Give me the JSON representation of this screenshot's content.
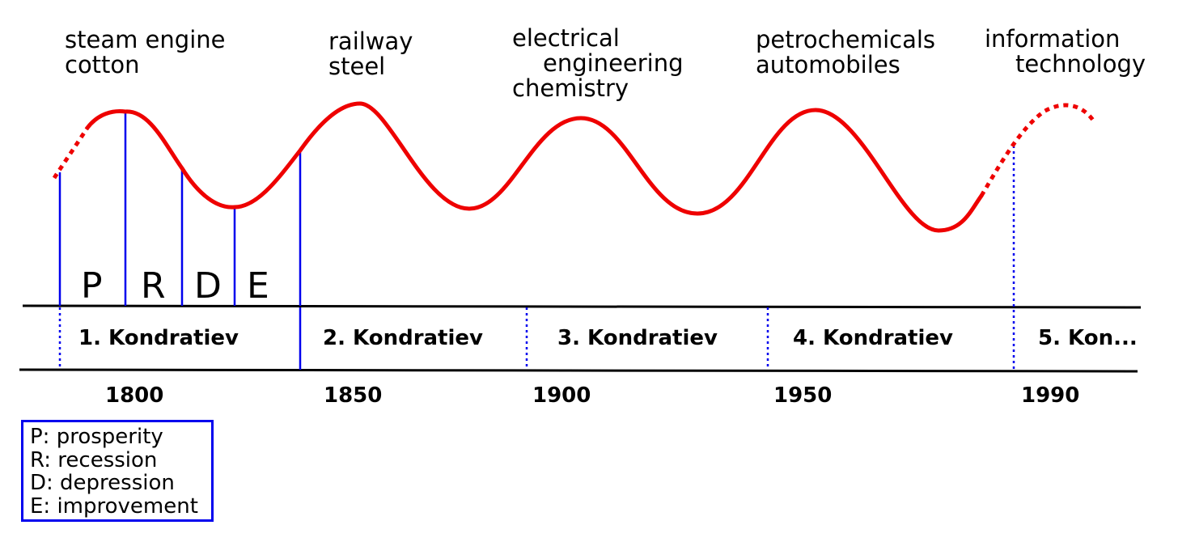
{
  "innovations": [
    {
      "lines": [
        "steam engine",
        "cotton"
      ]
    },
    {
      "lines": [
        "railway",
        "steel"
      ]
    },
    {
      "lines": [
        "electrical",
        "engineering",
        "chemistry"
      ]
    },
    {
      "lines": [
        "petrochemicals",
        "automobiles"
      ]
    },
    {
      "lines": [
        "information",
        "technology"
      ]
    }
  ],
  "phases": [
    "P",
    "R",
    "D",
    "E"
  ],
  "waves": [
    "1. Kondratiev",
    "2. Kondratiev",
    "3. Kondratiev",
    "4. Kondratiev",
    "5. Kon..."
  ],
  "years": [
    "1800",
    "1850",
    "1900",
    "1950",
    "1990"
  ],
  "legend": [
    "P: prosperity",
    "R: recession",
    "D: depression",
    "E: improvement"
  ],
  "colors": {
    "curve": "#ee0000",
    "markers": "#0000ee",
    "axis": "#000000"
  }
}
